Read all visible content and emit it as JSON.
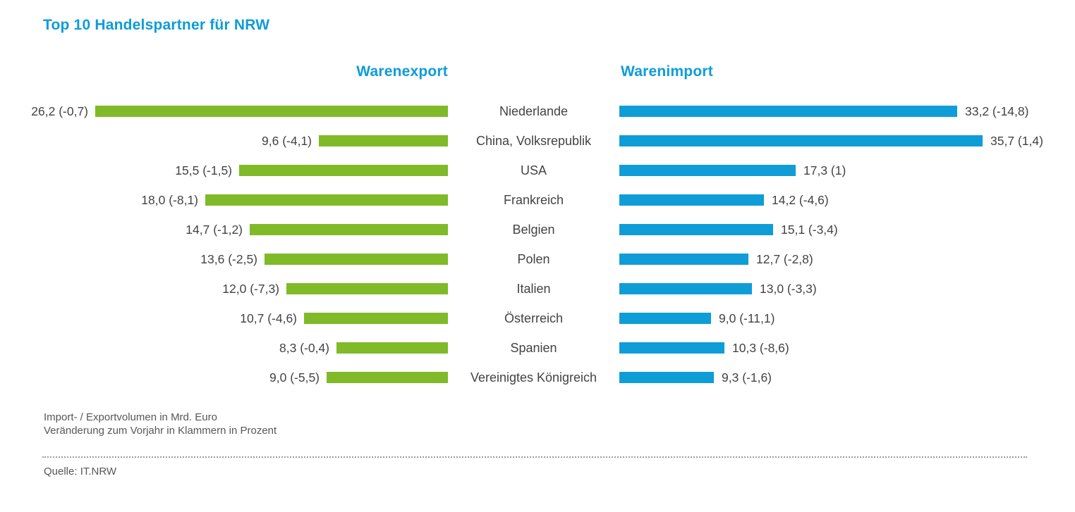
{
  "title": "Top 10 Handelspartner für NRW",
  "colors": {
    "accent_blue": "#0d9cd8",
    "bar_green": "#80ba28",
    "bar_blue": "#0f9dd8",
    "text_dark": "#434342",
    "text_gray": "#575756"
  },
  "footnotes": {
    "line1": "Import- / Exportvolumen in Mrd. Euro",
    "line2": "Veränderung zum Vorjahr in Klammern in Prozent"
  },
  "source": "Quelle: IT.NRW",
  "chart_data": {
    "type": "bar",
    "variant": "butterfly",
    "title": "Top 10 Handelspartner für NRW",
    "unit": "Mrd. Euro",
    "axis": "none",
    "grid": false,
    "legend_position": "column headers above each side",
    "scaling": "each side scaled independently so its longest bar fills the track",
    "categories": [
      "Niederlande",
      "China, Volksrepublik",
      "USA",
      "Frankreich",
      "Belgien",
      "Polen",
      "Italien",
      "Österreich",
      "Spanien",
      "Vereinigtes Königreich"
    ],
    "series": [
      {
        "name": "Warenexport",
        "side": "left",
        "color": "#80ba28",
        "values": [
          26.2,
          9.6,
          15.5,
          18.0,
          14.7,
          13.6,
          12.0,
          10.7,
          8.3,
          9.0
        ],
        "changes_vs_prev_year_pct": [
          -0.7,
          -4.1,
          -1.5,
          -8.1,
          -1.2,
          -2.5,
          -7.3,
          -4.6,
          -0.4,
          -5.5
        ],
        "labels": [
          "26,2 (-0,7)",
          "9,6 (-4,1)",
          "15,5 (-1,5)",
          "18,0 (-8,1)",
          "14,7 (-1,2)",
          "13,6 (-2,5)",
          "12,0 (-7,3)",
          "10,7 (-4,6)",
          "8,3 (-0,4)",
          "9,0 (-5,5)"
        ]
      },
      {
        "name": "Warenimport",
        "side": "right",
        "color": "#0f9dd8",
        "values": [
          33.2,
          35.7,
          17.3,
          14.2,
          15.1,
          12.7,
          13.0,
          9.0,
          10.3,
          9.3
        ],
        "changes_vs_prev_year_pct": [
          -14.8,
          1.4,
          1,
          -4.6,
          -3.4,
          -2.8,
          -3.3,
          -11.1,
          -8.6,
          -1.6
        ],
        "labels": [
          "33,2 (-14,8)",
          "35,7 (1,4)",
          "17,3 (1)",
          "14,2 (-4,6)",
          "15,1 (-3,4)",
          "12,7 (-2,8)",
          "13,0 (-3,3)",
          "9,0 (-11,1)",
          "10,3 (-8,6)",
          "9,3 (-1,6)"
        ]
      }
    ],
    "value_note": "Import- / Exportvolumen in Mrd. Euro",
    "change_note": "Veränderung zum Vorjahr in Klammern in Prozent",
    "source": "Quelle: IT.NRW"
  }
}
